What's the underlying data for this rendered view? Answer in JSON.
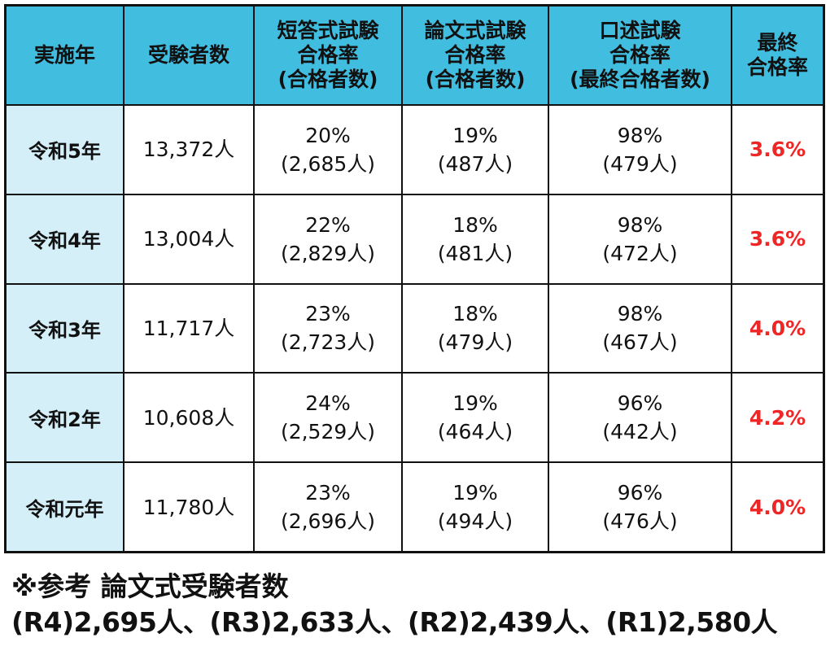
{
  "headers": [
    [
      "実施年"
    ],
    [
      "受験者数"
    ],
    [
      "短答式試験",
      "合格率",
      "(合格者数)"
    ],
    [
      "論文式試験",
      "合格率",
      "(合格者数)"
    ],
    [
      "口述試験",
      "合格率",
      "(最終合格者数)"
    ],
    [
      "最終",
      "合格率"
    ]
  ],
  "rows": [
    {
      "year": "令和5年",
      "applicants": "13,372人",
      "tanto_rate": "20%",
      "tanto_pass": "(2,685人)",
      "ronbun_rate": "19%",
      "ronbun_pass": "(487人)",
      "koujutsu_rate": "98%",
      "koujutsu_pass": "(479人)",
      "final_rate": "3.6%"
    },
    {
      "year": "令和4年",
      "applicants": "13,004人",
      "tanto_rate": "22%",
      "tanto_pass": "(2,829人)",
      "ronbun_rate": "18%",
      "ronbun_pass": "(481人)",
      "koujutsu_rate": "98%",
      "koujutsu_pass": "(472人)",
      "final_rate": "3.6%"
    },
    {
      "year": "令和3年",
      "applicants": "11,717人",
      "tanto_rate": "23%",
      "tanto_pass": "(2,723人)",
      "ronbun_rate": "18%",
      "ronbun_pass": "(479人)",
      "koujutsu_rate": "98%",
      "koujutsu_pass": "(467人)",
      "final_rate": "4.0%"
    },
    {
      "year": "令和2年",
      "applicants": "10,608人",
      "tanto_rate": "24%",
      "tanto_pass": "(2,529人)",
      "ronbun_rate": "19%",
      "ronbun_pass": "(464人)",
      "koujutsu_rate": "96%",
      "koujutsu_pass": "(442人)",
      "final_rate": "4.2%"
    },
    {
      "year": "令和元年",
      "applicants": "11,780人",
      "tanto_rate": "23%",
      "tanto_pass": "(2,696人)",
      "ronbun_rate": "19%",
      "ronbun_pass": "(494人)",
      "koujutsu_rate": "96%",
      "koujutsu_pass": "(476人)",
      "final_rate": "4.0%"
    }
  ],
  "note": {
    "title": "※参考 論文式受験者数",
    "detail": "(R4)2,695人、(R3)2,633人、(R2)2,439人、(R1)2,580人"
  },
  "colors": {
    "header_bg": "#41bde0",
    "year_bg": "#d4eff8",
    "final_rate_text": "#ee2626",
    "border": "#111111"
  }
}
